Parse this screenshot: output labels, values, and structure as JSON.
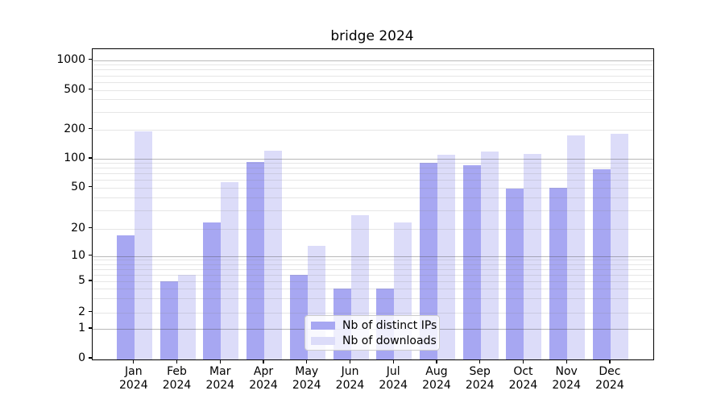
{
  "chart_data": {
    "type": "bar",
    "title": "bridge 2024",
    "categories": [
      "Jan",
      "Feb",
      "Mar",
      "Apr",
      "May",
      "Jun",
      "Jul",
      "Aug",
      "Sep",
      "Oct",
      "Nov",
      "Dec"
    ],
    "category_year": "2024",
    "series": [
      {
        "name": "Nb of distinct IPs",
        "color": "#a7a7f2",
        "values": [
          17,
          5,
          23,
          92,
          6,
          4,
          4,
          90,
          85,
          49,
          50,
          77
        ]
      },
      {
        "name": "Nb of downloads",
        "color": "#dcdcf9",
        "values": [
          190,
          6,
          57,
          122,
          13,
          27,
          23,
          110,
          118,
          112,
          175,
          180
        ]
      }
    ],
    "yscale": "symlog",
    "y_ticks": [
      1000,
      500,
      200,
      100,
      50,
      20,
      10,
      5,
      2,
      1,
      0
    ],
    "ylim": [
      0,
      1300
    ],
    "grid": true,
    "legend_position": "lower-center"
  }
}
